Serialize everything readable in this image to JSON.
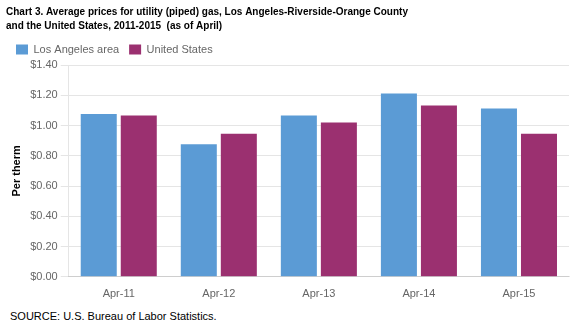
{
  "chart_data": {
    "type": "bar",
    "title": "Chart 3. Average prices for utility (piped) gas, Los Angeles-Riverside-Orange County",
    "subtitle": "and the United States, 2011-2015  (as of April)",
    "ylabel": "Per therm",
    "annotations": [
      "SOURCE: U.S. Bureau of Labor Statistics."
    ],
    "categories": [
      "Apr-11",
      "Apr-12",
      "Apr-13",
      "Apr-14",
      "Apr-15"
    ],
    "series": [
      {
        "name": "Los Angeles area",
        "color": "#5B9BD5",
        "values": [
          1.076,
          0.876,
          1.066,
          1.212,
          1.112
        ]
      },
      {
        "name": "United States",
        "color": "#9B3070",
        "values": [
          1.066,
          0.946,
          1.02,
          1.132,
          0.946
        ]
      }
    ],
    "ylim": [
      0.0,
      1.4
    ],
    "yticks": [
      {
        "value": 0.0,
        "label": "$0.00"
      },
      {
        "value": 0.2,
        "label": "$0.20"
      },
      {
        "value": 0.4,
        "label": "$0.40"
      },
      {
        "value": 0.6,
        "label": "$0.60"
      },
      {
        "value": 0.8,
        "label": "$0.80"
      },
      {
        "value": 1.0,
        "label": "$1.00"
      },
      {
        "value": 1.2,
        "label": "$1.20"
      },
      {
        "value": 1.4,
        "label": "$1.40"
      }
    ],
    "grid": true,
    "legend": "upper left"
  }
}
